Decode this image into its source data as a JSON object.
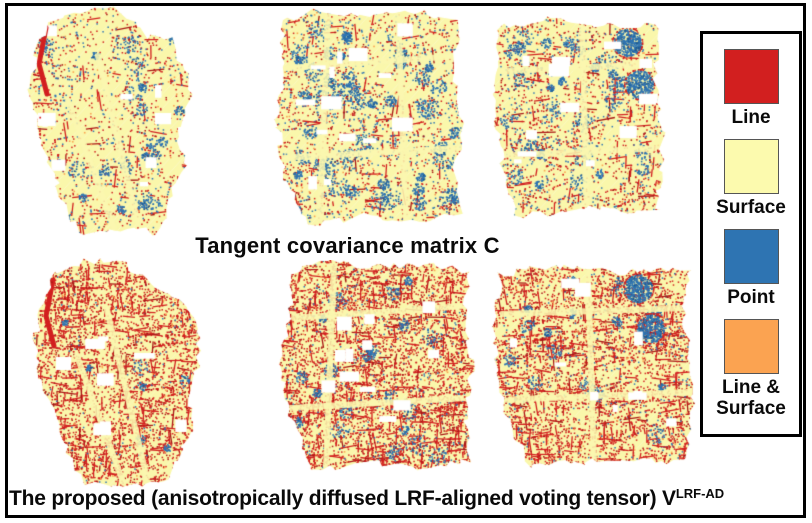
{
  "figure": {
    "top_caption": "Tangent covariance matrix C",
    "bottom_caption_main": "The proposed (anisotropically diffused LRF-aligned voting tensor) V",
    "bottom_caption_superscript": "LRF-AD"
  },
  "legend": {
    "items": [
      {
        "label": "Line",
        "color": "#d21f1f"
      },
      {
        "label": "Surface",
        "color": "#fcfaae"
      },
      {
        "label": "Point",
        "color": "#2e74b2"
      },
      {
        "label": "Line & Surface",
        "color": "#fba351"
      }
    ]
  },
  "colors": {
    "line": "#d21f1f",
    "line_dark": "#a81515",
    "surface": "#faf7ab",
    "point": "#2e74b2",
    "point_dark": "#1d5a8f",
    "line_surface": "#fba351",
    "hole": "#ffffff",
    "frame": "#000000",
    "background": "#ffffff"
  },
  "panels": [
    {
      "name": "scene-1-tangent-covariance"
    },
    {
      "name": "scene-2-tangent-covariance"
    },
    {
      "name": "scene-3-tangent-covariance"
    },
    {
      "name": "scene-1-proposed-voting-tensor"
    },
    {
      "name": "scene-2-proposed-voting-tensor"
    },
    {
      "name": "scene-3-proposed-voting-tensor"
    }
  ]
}
